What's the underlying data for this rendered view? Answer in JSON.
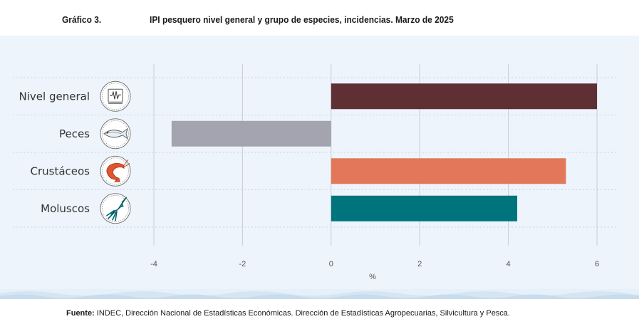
{
  "figure": {
    "number": "Gráfico 3.",
    "title": "IPI pesquero nivel general y grupo de especies, incidencias. Marzo de 2025"
  },
  "chart_data": {
    "type": "bar",
    "orientation": "horizontal",
    "categories": [
      "Nivel general",
      "Peces",
      "Crustáceos",
      "Moluscos"
    ],
    "values": [
      6.0,
      -3.6,
      5.3,
      4.2
    ],
    "colors": [
      "#5e3034",
      "#a4a4b0",
      "#e3775a",
      "#00747c"
    ],
    "icons": [
      "monitor-icon",
      "fish-icon",
      "shrimp-icon",
      "squid-icon"
    ],
    "xlabel": "%",
    "xlim": [
      -4,
      6
    ],
    "xticks": [
      "-4",
      "-2",
      "0",
      "2",
      "4",
      "6"
    ],
    "grid": true
  },
  "source": {
    "label": "Fuente:",
    "text": " INDEC, Dirección Nacional de Estadísticas Económicas. Dirección de Estadísticas Agropecuarias, Silvicultura y Pesca."
  }
}
